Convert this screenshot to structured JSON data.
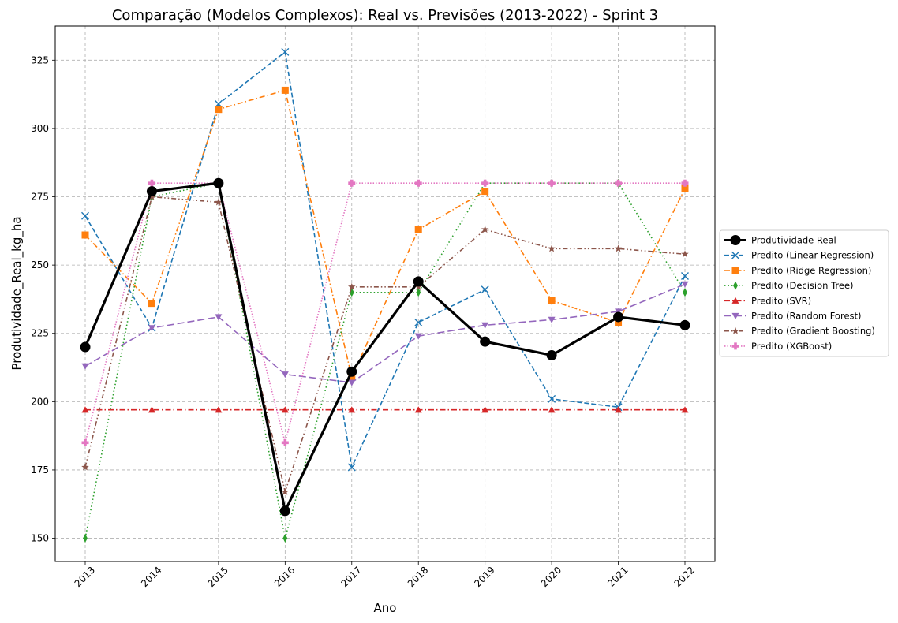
{
  "chart_data": {
    "type": "line",
    "title": "Comparação (Modelos Complexos): Real vs. Previsões (2013-2022) - Sprint 3",
    "xlabel": "Ano",
    "ylabel": "Produtividade_Real_kg_ha",
    "categories": [
      "2013",
      "2014",
      "2015",
      "2016",
      "2017",
      "2018",
      "2019",
      "2020",
      "2021",
      "2022"
    ],
    "y_ticks": [
      150,
      175,
      200,
      225,
      250,
      275,
      300,
      325
    ],
    "ylim": [
      141.5,
      337.5
    ],
    "grid": true,
    "legend_position": "center-right (outside plot)",
    "series": [
      {
        "name": "Produtividade Real",
        "values": [
          220,
          277,
          280,
          160,
          211,
          244,
          222,
          217,
          231,
          228
        ],
        "color": "#000000",
        "marker": "circle",
        "line": "solid"
      },
      {
        "name": "Predito (Linear Regression)",
        "values": [
          268,
          227,
          309,
          328,
          176,
          229,
          241,
          201,
          198,
          246
        ],
        "color": "#1f77b4",
        "marker": "x",
        "line": "dashed"
      },
      {
        "name": "Predito (Ridge Regression)",
        "values": [
          261,
          236,
          307,
          314,
          209,
          263,
          277,
          237,
          229,
          278
        ],
        "color": "#ff7f0e",
        "marker": "square",
        "line": "dashdot"
      },
      {
        "name": "Predito (Decision Tree)",
        "values": [
          150,
          275,
          280,
          150,
          240,
          240,
          280,
          280,
          280,
          240
        ],
        "color": "#2ca02c",
        "marker": "diamond",
        "line": "dotted"
      },
      {
        "name": "Predito (SVR)",
        "values": [
          197,
          197,
          197,
          197,
          197,
          197,
          197,
          197,
          197,
          197
        ],
        "color": "#d62728",
        "marker": "triangle-up",
        "line": "dashdot"
      },
      {
        "name": "Predito (Random Forest)",
        "values": [
          213,
          227,
          231,
          210,
          207,
          224,
          228,
          230,
          233,
          243
        ],
        "color": "#9467bd",
        "marker": "triangle-down",
        "line": "longdash"
      },
      {
        "name": "Predito (Gradient Boosting)",
        "values": [
          176,
          275,
          273,
          167,
          242,
          242,
          263,
          256,
          256,
          254
        ],
        "color": "#8c564b",
        "marker": "star",
        "line": "dashdotdot"
      },
      {
        "name": "Predito (XGBoost)",
        "values": [
          185,
          280,
          280,
          185,
          280,
          280,
          280,
          280,
          280,
          280
        ],
        "color": "#e377c2",
        "marker": "plus",
        "line": "densedot"
      }
    ]
  }
}
